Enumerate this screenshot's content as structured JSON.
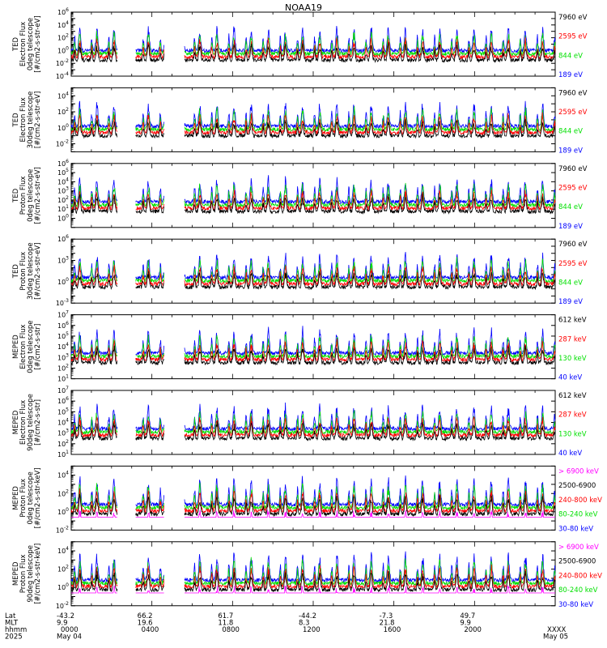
{
  "title": "NOAA19",
  "colors": {
    "black": "#000000",
    "red": "#ff0000",
    "green": "#00e000",
    "blue": "#0000ff",
    "magenta": "#ff00ff"
  },
  "panels": [
    {
      "ylabel": [
        "TED",
        "Electron Flux",
        "0deg telescope",
        "[#/cm2-s-str-eV]"
      ],
      "ylog": [
        -4,
        6
      ],
      "ticks": [
        "10^6",
        "10^4",
        "10^2",
        "10^0",
        "10^-2",
        "10^-4"
      ],
      "tick_exp": [
        6,
        4,
        2,
        0,
        -2,
        -4
      ],
      "legend": [
        {
          "text": "7960 eV",
          "color": "black"
        },
        {
          "text": "2595 eV",
          "color": "red"
        },
        {
          "text": "844 eV",
          "color": "green"
        },
        {
          "text": "189 eV",
          "color": "blue"
        }
      ]
    },
    {
      "ylabel": [
        "TED",
        "Electron Flux",
        "30deg telescope",
        "[#/cm2-s-str-eV]"
      ],
      "ylog": [
        -3,
        5
      ],
      "ticks": [
        "10^4",
        "10^2",
        "10^0",
        "10^-2"
      ],
      "tick_exp": [
        4,
        2,
        0,
        -2
      ],
      "legend": [
        {
          "text": "7960 eV",
          "color": "black"
        },
        {
          "text": "2595 eV",
          "color": "red"
        },
        {
          "text": "844 eV",
          "color": "green"
        },
        {
          "text": "189 eV",
          "color": "blue"
        }
      ]
    },
    {
      "ylabel": [
        "TED",
        "Proton Flux",
        "0deg telescope",
        "[#/cm2-s-str-eV]"
      ],
      "ylog": [
        -1,
        6
      ],
      "ticks": [
        "10^6",
        "10^5",
        "10^4",
        "10^3",
        "10^2",
        "10^1",
        "10^0"
      ],
      "tick_exp": [
        6,
        5,
        4,
        3,
        2,
        1,
        0
      ],
      "legend": [
        {
          "text": "7960 eV",
          "color": "black"
        },
        {
          "text": "2595 eV",
          "color": "red"
        },
        {
          "text": "844 eV",
          "color": "green"
        },
        {
          "text": "189 eV",
          "color": "blue"
        }
      ]
    },
    {
      "ylabel": [
        "TED",
        "Proton Flux",
        "30deg telescope",
        "[#/cm2-s-str-eV]"
      ],
      "ylog": [
        -3,
        6
      ],
      "ticks": [
        "10^6",
        "10^3",
        "10^0",
        "10^-3"
      ],
      "tick_exp": [
        6,
        3,
        0,
        -3
      ],
      "legend": [
        {
          "text": "7960 eV",
          "color": "black"
        },
        {
          "text": "2595 eV",
          "color": "red"
        },
        {
          "text": "844 eV",
          "color": "green"
        },
        {
          "text": "189 eV",
          "color": "blue"
        }
      ]
    },
    {
      "ylabel": [
        "MEPED",
        "Electron Flux",
        "0deg telescope",
        "[#/cm2-s-str]"
      ],
      "ylog": [
        1,
        7
      ],
      "ticks": [
        "10^7",
        "10^6",
        "10^5",
        "10^4",
        "10^3",
        "10^2",
        "10^1"
      ],
      "tick_exp": [
        7,
        6,
        5,
        4,
        3,
        2,
        1
      ],
      "legend": [
        {
          "text": "612 keV",
          "color": "black"
        },
        {
          "text": "287 keV",
          "color": "red"
        },
        {
          "text": "130 keV",
          "color": "green"
        },
        {
          "text": "40 keV",
          "color": "blue"
        }
      ]
    },
    {
      "ylabel": [
        "MEPED",
        "Electron Flux",
        "90deg telescope",
        "[#/cm2-s-str]"
      ],
      "ylog": [
        1,
        7
      ],
      "ticks": [
        "10^7",
        "10^6",
        "10^5",
        "10^4",
        "10^3",
        "10^2",
        "10^1"
      ],
      "tick_exp": [
        7,
        6,
        5,
        4,
        3,
        2,
        1
      ],
      "legend": [
        {
          "text": "612 keV",
          "color": "black"
        },
        {
          "text": "287 keV",
          "color": "red"
        },
        {
          "text": "130 keV",
          "color": "green"
        },
        {
          "text": "40 keV",
          "color": "blue"
        }
      ]
    },
    {
      "ylabel": [
        "MEPED",
        "Proton Flux",
        "0deg telescope",
        "[#/cm2-s-str-keV]"
      ],
      "ylog": [
        -2,
        5
      ],
      "ticks": [
        "10^4",
        "10^2",
        "10^0",
        "10^-2"
      ],
      "tick_exp": [
        4,
        2,
        0,
        -2
      ],
      "legend": [
        {
          "text": "> 6900 keV",
          "color": "magenta"
        },
        {
          "text": "2500-6900",
          "color": "black"
        },
        {
          "text": "240-800 keV",
          "color": "red"
        },
        {
          "text": "80-240 keV",
          "color": "green"
        },
        {
          "text": "30-80 keV",
          "color": "blue"
        }
      ]
    },
    {
      "ylabel": [
        "MEPED",
        "Proton Flux",
        "90deg telescope",
        "[#/cm2-s-str-keV]"
      ],
      "ylog": [
        -2,
        5
      ],
      "ticks": [
        "10^4",
        "10^2",
        "10^0",
        "10^-2"
      ],
      "tick_exp": [
        4,
        2,
        0,
        -2
      ],
      "legend": [
        {
          "text": "> 6900 keV",
          "color": "magenta"
        },
        {
          "text": "2500-6900",
          "color": "black"
        },
        {
          "text": "240-800 keV",
          "color": "red"
        },
        {
          "text": "80-240 keV",
          "color": "green"
        },
        {
          "text": "30-80 keV",
          "color": "blue"
        }
      ]
    }
  ],
  "xaxis": {
    "row_labels": [
      "Lat",
      "MLT",
      "hhmm",
      "2025"
    ],
    "columns": [
      {
        "lat": "-43.2",
        "mlt": "9.9",
        "hhmm": "0000",
        "date": "May 04"
      },
      {
        "lat": "66.2",
        "mlt": "19.6",
        "hhmm": "0400",
        "date": ""
      },
      {
        "lat": "61.7",
        "mlt": "11.8",
        "hhmm": "0800",
        "date": ""
      },
      {
        "lat": "-44.2",
        "mlt": "8.3",
        "hhmm": "1200",
        "date": ""
      },
      {
        "lat": "-7.3",
        "mlt": "21.8",
        "hhmm": "1600",
        "date": ""
      },
      {
        "lat": "49.7",
        "mlt": "9.9",
        "hhmm": "2000",
        "date": ""
      },
      {
        "lat": "",
        "mlt": "",
        "hhmm": "XXXX",
        "date": "May 05"
      }
    ]
  },
  "chart_data": {
    "type": "line",
    "title": "NOAA19",
    "x_unit": "hhmm",
    "x_ticks": [
      "0000",
      "0400",
      "0800",
      "1200",
      "1600",
      "2000",
      "XXXX"
    ],
    "ylog": true,
    "data_gaps_hours": [
      [
        2.3,
        3.2
      ],
      [
        4.6,
        5.6
      ]
    ],
    "pass_period_hours": 0.85,
    "series_per_panel": [
      {
        "name": "7960 eV",
        "color": "black",
        "baseline_log10": 0.7,
        "peak_log10": 2.5
      },
      {
        "name": "2595 eV",
        "color": "red",
        "baseline_log10": 1.0,
        "peak_log10": 3.5
      },
      {
        "name": "844 eV",
        "color": "green",
        "baseline_log10": 1.2,
        "peak_log10": 4.2
      },
      {
        "name": "189 eV",
        "color": "blue",
        "baseline_log10": 1.5,
        "peak_log10": 5.0
      }
    ]
  }
}
